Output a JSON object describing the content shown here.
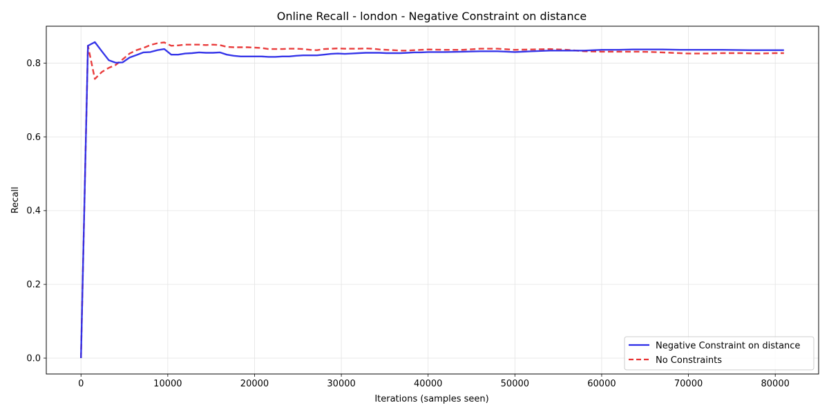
{
  "chart_data": {
    "type": "line",
    "title": "Online Recall - london - Negative Constraint on distance",
    "xlabel": "Iterations (samples seen)",
    "ylabel": "Recall",
    "xlim": [
      -4000,
      85000
    ],
    "ylim": [
      -0.043,
      0.9
    ],
    "xticks": [
      0,
      10000,
      20000,
      30000,
      40000,
      50000,
      60000,
      70000,
      80000
    ],
    "xtick_labels": [
      "0",
      "10000",
      "20000",
      "30000",
      "40000",
      "50000",
      "60000",
      "70000",
      "80000"
    ],
    "yticks": [
      0.0,
      0.2,
      0.4,
      0.6,
      0.8
    ],
    "ytick_labels": [
      "0.0",
      "0.2",
      "0.4",
      "0.6",
      "0.8"
    ],
    "grid": true,
    "legend_position": "bottom-right",
    "series": [
      {
        "name": "Negative Constraint on distance",
        "color": "#2a2ae8",
        "style": "solid",
        "x": [
          0,
          800,
          1600,
          2400,
          3200,
          4000,
          4800,
          5600,
          6400,
          7200,
          8000,
          8800,
          9600,
          10400,
          11200,
          12000,
          12800,
          13600,
          14400,
          15200,
          16000,
          16800,
          17600,
          18400,
          19200,
          20000,
          20800,
          21600,
          22400,
          23200,
          24000,
          24800,
          25600,
          26400,
          27200,
          28000,
          28800,
          29600,
          30400,
          31200,
          32000,
          32800,
          33600,
          34400,
          35200,
          36000,
          36800,
          37600,
          38400,
          39200,
          40000,
          42000,
          44000,
          46000,
          48000,
          50000,
          52000,
          54000,
          56000,
          58000,
          60000,
          62000,
          63600,
          65000,
          67000,
          69000,
          71000,
          74000,
          77000,
          80000,
          81000
        ],
        "y": [
          0.0,
          0.847,
          0.857,
          0.832,
          0.808,
          0.801,
          0.802,
          0.815,
          0.822,
          0.829,
          0.83,
          0.835,
          0.838,
          0.823,
          0.823,
          0.826,
          0.827,
          0.829,
          0.828,
          0.828,
          0.829,
          0.823,
          0.82,
          0.818,
          0.818,
          0.818,
          0.818,
          0.817,
          0.817,
          0.818,
          0.818,
          0.82,
          0.821,
          0.821,
          0.821,
          0.823,
          0.825,
          0.826,
          0.825,
          0.826,
          0.827,
          0.828,
          0.828,
          0.828,
          0.827,
          0.827,
          0.827,
          0.828,
          0.829,
          0.829,
          0.83,
          0.83,
          0.831,
          0.832,
          0.832,
          0.83,
          0.832,
          0.834,
          0.834,
          0.834,
          0.836,
          0.836,
          0.837,
          0.837,
          0.837,
          0.836,
          0.836,
          0.836,
          0.835,
          0.835,
          0.835
        ]
      },
      {
        "name": "No Constraints",
        "color": "#e83232",
        "style": "dashed",
        "x": [
          0,
          800,
          1600,
          2400,
          3200,
          4000,
          4800,
          5600,
          6400,
          7200,
          8000,
          8800,
          9600,
          10400,
          11200,
          12000,
          12800,
          13600,
          14400,
          15200,
          16000,
          16800,
          17600,
          18400,
          19200,
          20000,
          20800,
          21600,
          22400,
          23200,
          24000,
          24800,
          25600,
          26400,
          27200,
          28000,
          28800,
          29600,
          30400,
          31200,
          32000,
          32800,
          33600,
          34400,
          35200,
          36000,
          36800,
          37600,
          38400,
          39200,
          40000,
          42000,
          44000,
          46000,
          48000,
          50000,
          52000,
          54000,
          56000,
          58000,
          60000,
          62000,
          64000,
          66000,
          68000,
          70000,
          72000,
          74000,
          76000,
          78000,
          80000,
          81000
        ],
        "y": [
          0.0,
          0.847,
          0.757,
          0.776,
          0.787,
          0.795,
          0.81,
          0.826,
          0.835,
          0.841,
          0.849,
          0.854,
          0.856,
          0.847,
          0.848,
          0.85,
          0.85,
          0.85,
          0.849,
          0.85,
          0.849,
          0.844,
          0.843,
          0.843,
          0.843,
          0.842,
          0.841,
          0.838,
          0.838,
          0.838,
          0.839,
          0.839,
          0.838,
          0.836,
          0.835,
          0.838,
          0.839,
          0.84,
          0.839,
          0.839,
          0.839,
          0.84,
          0.839,
          0.837,
          0.836,
          0.835,
          0.834,
          0.834,
          0.835,
          0.836,
          0.837,
          0.836,
          0.836,
          0.839,
          0.839,
          0.836,
          0.837,
          0.838,
          0.836,
          0.832,
          0.831,
          0.831,
          0.831,
          0.83,
          0.828,
          0.826,
          0.826,
          0.827,
          0.827,
          0.826,
          0.827,
          0.827
        ]
      }
    ]
  }
}
